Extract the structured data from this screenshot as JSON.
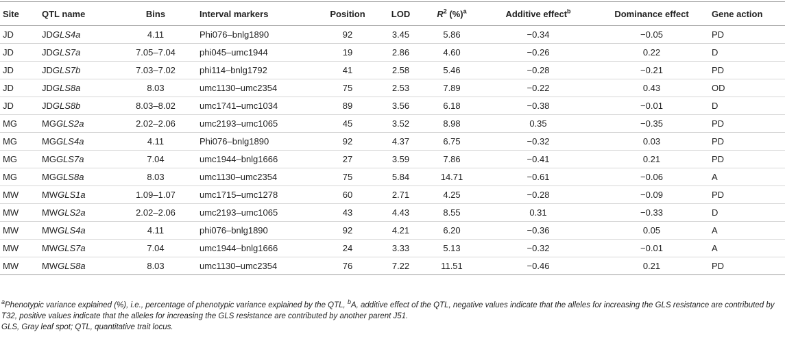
{
  "headers": {
    "site": "Site",
    "qtl_name": "QTL name",
    "bins": "Bins",
    "interval_markers": "Interval markers",
    "position": "Position",
    "lod": "LOD",
    "r2_letter": "R",
    "r2_sup": "2",
    "r2_rest": " (%)",
    "r2_note": "a",
    "additive": "Additive effect",
    "additive_note": "b",
    "dominance": "Dominance effect",
    "gene_action": "Gene action"
  },
  "rows": [
    {
      "site": "JD",
      "qtl_prefix": "JD",
      "qtl_gene": "GLS4a",
      "bins": "4.11",
      "markers": "Phi076–bnlg1890",
      "position": "92",
      "lod": "3.45",
      "r2": "5.86",
      "additive": "−0.34",
      "dominance": "−0.05",
      "action": "PD"
    },
    {
      "site": "JD",
      "qtl_prefix": "JD",
      "qtl_gene": "GLS7a",
      "bins": "7.05–7.04",
      "markers": "phi045–umc1944",
      "position": "19",
      "lod": "2.86",
      "r2": "4.60",
      "additive": "−0.26",
      "dominance": "0.22",
      "action": "D"
    },
    {
      "site": "JD",
      "qtl_prefix": "JD",
      "qtl_gene": "GLS7b",
      "bins": "7.03–7.02",
      "markers": "phi114–bnlg1792",
      "position": "41",
      "lod": "2.58",
      "r2": "5.46",
      "additive": "−0.28",
      "dominance": "−0.21",
      "action": "PD"
    },
    {
      "site": "JD",
      "qtl_prefix": "JD",
      "qtl_gene": "GLS8a",
      "bins": "8.03",
      "markers": "umc1130–umc2354",
      "position": "75",
      "lod": "2.53",
      "r2": "7.89",
      "additive": "−0.22",
      "dominance": "0.43",
      "action": "OD"
    },
    {
      "site": "JD",
      "qtl_prefix": "JD",
      "qtl_gene": "GLS8b",
      "bins": "8.03–8.02",
      "markers": "umc1741–umc1034",
      "position": "89",
      "lod": "3.56",
      "r2": "6.18",
      "additive": "−0.38",
      "dominance": "−0.01",
      "action": "D"
    },
    {
      "site": "MG",
      "qtl_prefix": "MG",
      "qtl_gene": "GLS2a",
      "bins": "2.02–2.06",
      "markers": "umc2193–umc1065",
      "position": "45",
      "lod": "3.52",
      "r2": "8.98",
      "additive": "0.35",
      "dominance": "−0.35",
      "action": "PD"
    },
    {
      "site": "MG",
      "qtl_prefix": "MG",
      "qtl_gene": "GLS4a",
      "bins": "4.11",
      "markers": "Phi076–bnlg1890",
      "position": "92",
      "lod": "4.37",
      "r2": "6.75",
      "additive": "−0.32",
      "dominance": "0.03",
      "action": "PD"
    },
    {
      "site": "MG",
      "qtl_prefix": "MG",
      "qtl_gene": "GLS7a",
      "bins": "7.04",
      "markers": "umc1944–bnlg1666",
      "position": "27",
      "lod": "3.59",
      "r2": "7.86",
      "additive": "−0.41",
      "dominance": "0.21",
      "action": "PD"
    },
    {
      "site": "MG",
      "qtl_prefix": "MG",
      "qtl_gene": "GLS8a",
      "bins": "8.03",
      "markers": "umc1130–umc2354",
      "position": "75",
      "lod": "5.84",
      "r2": "14.71",
      "additive": "−0.61",
      "dominance": "−0.06",
      "action": "A"
    },
    {
      "site": "MW",
      "qtl_prefix": "MW",
      "qtl_gene": "GLS1a",
      "bins": "1.09–1.07",
      "markers": "umc1715–umc1278",
      "position": "60",
      "lod": "2.71",
      "r2": "4.25",
      "additive": "−0.28",
      "dominance": "−0.09",
      "action": "PD"
    },
    {
      "site": "MW",
      "qtl_prefix": "MW",
      "qtl_gene": "GLS2a",
      "bins": "2.02–2.06",
      "markers": "umc2193–umc1065",
      "position": "43",
      "lod": "4.43",
      "r2": "8.55",
      "additive": "0.31",
      "dominance": "−0.33",
      "action": "D"
    },
    {
      "site": "MW",
      "qtl_prefix": "MW",
      "qtl_gene": "GLS4a",
      "bins": "4.11",
      "markers": "phi076–bnlg1890",
      "position": "92",
      "lod": "4.21",
      "r2": "6.20",
      "additive": "−0.36",
      "dominance": "0.05",
      "action": "A"
    },
    {
      "site": "MW",
      "qtl_prefix": "MW",
      "qtl_gene": "GLS7a",
      "bins": "7.04",
      "markers": "umc1944–bnlg1666",
      "position": "24",
      "lod": "3.33",
      "r2": "5.13",
      "additive": "−0.32",
      "dominance": "−0.01",
      "action": "A"
    },
    {
      "site": "MW",
      "qtl_prefix": "MW",
      "qtl_gene": "GLS8a",
      "bins": "8.03",
      "markers": "umc1130–umc2354",
      "position": "76",
      "lod": "7.22",
      "r2": "11.51",
      "additive": "−0.46",
      "dominance": "0.21",
      "action": "PD"
    }
  ],
  "footnotes": {
    "a_mark": "a",
    "a_text": "Phenotypic variance explained (%), i.e., percentage of phenotypic variance explained by the QTL, ",
    "b_mark": "b",
    "b_text": "A, additive effect of the QTL, negative values indicate that the alleles for increasing the GLS resistance are contributed by T32, positive values indicate that the alleles for increasing the GLS resistance are contributed by another parent J51.",
    "abbrev": "GLS, Gray leaf spot; QTL, quantitative trait locus."
  }
}
